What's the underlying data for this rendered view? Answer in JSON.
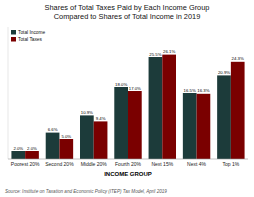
{
  "chart_data": {
    "type": "bar",
    "title": "Shares of Total Taxes Paid by Each Income Group",
    "subtitle": "Compared to Shares of Total Income in 2019",
    "xlabel": "INCOME GROUP",
    "annotations": [
      "Source: Institute on Taxation and Economic Policy (ITEP) Tax Model, April 2019"
    ],
    "categories": [
      "Poorest 20%",
      "Second 20%",
      "Middle 20%",
      "Fourth 20%",
      "Next 15%",
      "Next 4%",
      "Top 1%"
    ],
    "series": [
      {
        "name": "Total Income",
        "color": "#1c3b3a",
        "values": [
          2.0,
          6.6,
          10.9,
          18.0,
          25.5,
          16.5,
          20.9
        ],
        "value_labels": [
          "2.0%",
          "6.6%",
          "10.9%",
          "18.0%",
          "25.5%",
          "16.5%",
          "20.9%"
        ]
      },
      {
        "name": "Total Taxes",
        "color": "#7a0000",
        "values": [
          2.0,
          5.0,
          9.4,
          17.0,
          26.1,
          16.3,
          24.3
        ],
        "value_labels": [
          "2.0%",
          "5.0%",
          "9.4%",
          "17.0%",
          "26.1%",
          "16.3%",
          "24.3%"
        ]
      }
    ],
    "ylim": [
      0,
      33
    ],
    "grid": false,
    "legend": "upper left",
    "data_labels": true,
    "tick_labels": "x"
  }
}
